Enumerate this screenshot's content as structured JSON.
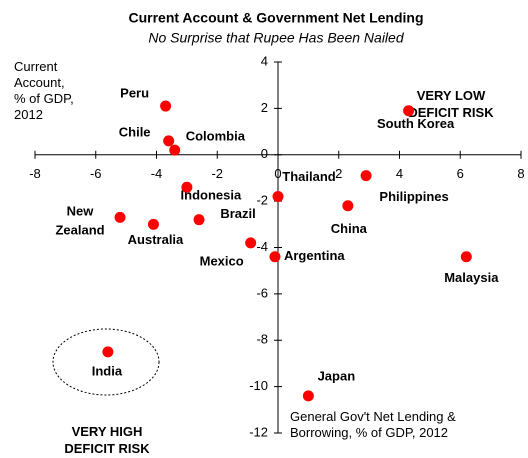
{
  "chart_data": {
    "type": "scatter",
    "title": "Current Account & Government Net Lending",
    "subtitle": "No Surprise that Rupee Has Been Nailed",
    "ylabel": [
      "Current",
      "Account,",
      "% of GDP,",
      "2012"
    ],
    "xlabel": [
      "General Gov't Net Lending &",
      "Borrowing, % of GDP, 2012"
    ],
    "annotations": [
      [
        "VERY LOW",
        "DEFICIT RISK"
      ],
      [
        "VERY HIGH",
        "DEFICIT RISK"
      ]
    ],
    "labels": [
      "Peru",
      "Chile",
      "Colombia",
      "Indonesia",
      "Thailand",
      "Philippines",
      "South Korea",
      "China",
      "Malaysia",
      "Argentina",
      "Mexico",
      "Brazil",
      "Australia",
      [
        "New",
        "Zealand"
      ],
      "India",
      "Japan"
    ],
    "x": [
      -3.7,
      -3.6,
      -3.4,
      -3.0,
      0.0,
      2.9,
      4.3,
      2.3,
      6.2,
      -0.1,
      -0.9,
      -2.6,
      -4.1,
      -5.2,
      -5.6,
      1.0
    ],
    "values": [
      2.1,
      0.6,
      0.2,
      -1.4,
      -1.8,
      -0.9,
      1.9,
      -2.2,
      -4.4,
      -4.4,
      -3.8,
      -2.8,
      -3.0,
      -2.7,
      -8.5,
      -10.4
    ],
    "color": "#ff0000",
    "xlim": [
      -8,
      8
    ],
    "xticks": [
      -8,
      -6,
      -4,
      -2,
      0,
      2,
      4,
      6,
      8
    ],
    "ylim": [
      -12,
      4
    ],
    "yticks": [
      4,
      2,
      0,
      -2,
      -4,
      -6,
      -8,
      -10,
      -12
    ]
  }
}
